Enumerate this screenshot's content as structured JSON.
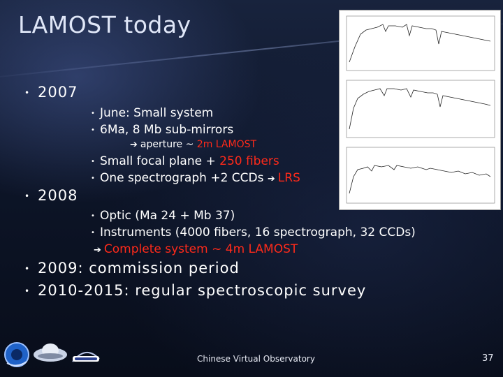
{
  "slide": {
    "title": "LAMOST today",
    "bullets": {
      "y2007": "2007",
      "y2007_items": {
        "june": "June: Small system",
        "mirrors": "6Ma, 8 Mb sub-mirrors",
        "aperture_prefix": "aperture ~ ",
        "aperture_highlight": "2m LAMOST",
        "focal_prefix": "Small focal plane + ",
        "focal_highlight": "250 fibers",
        "spectro_prefix": "One spectrograph +2 CCDs ",
        "spectro_highlight": "LRS"
      },
      "y2008": "2008",
      "y2008_items": {
        "optic": "Optic (Ma 24 + Mb 37)",
        "instruments": "Instruments (4000 fibers, 16 spectrograph, 32 CCDs)",
        "complete": "Complete system  ~ 4m LAMOST"
      },
      "y2009": "2009: commission period",
      "y2010": "2010-2015: regular spectroscopic survey"
    },
    "footer": {
      "center": "Chinese Virtual Observatory",
      "page_number": "37"
    },
    "colors": {
      "highlight": "#ff2a1a",
      "background": "#0c1428"
    },
    "icons": {
      "arrow": "➔",
      "bullet": "•"
    }
  }
}
